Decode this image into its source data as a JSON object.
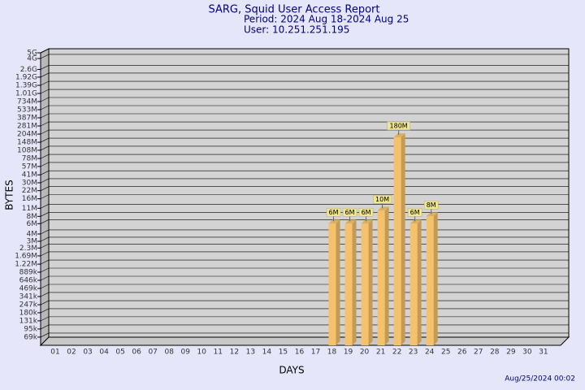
{
  "chart_data": {
    "type": "bar3d",
    "title": "SARG, Squid User Access Report",
    "subtitle": "Period: 2024 Aug 18-2024 Aug 25",
    "user": "User: 10.251.251.195",
    "xlabel": "DAYS",
    "ylabel": "BYTES",
    "timestamp": "Aug/25/2024 00:02",
    "categories": [
      "01",
      "02",
      "03",
      "04",
      "05",
      "06",
      "07",
      "08",
      "09",
      "10",
      "11",
      "12",
      "13",
      "14",
      "15",
      "16",
      "17",
      "18",
      "19",
      "20",
      "21",
      "22",
      "23",
      "24",
      "25",
      "26",
      "27",
      "28",
      "29",
      "30",
      "31"
    ],
    "values": [
      null,
      null,
      null,
      null,
      null,
      null,
      null,
      null,
      null,
      null,
      null,
      null,
      null,
      null,
      null,
      null,
      null,
      6000000,
      6000000,
      6000000,
      10000000,
      180000000,
      6000000,
      8000000,
      null,
      null,
      null,
      null,
      null,
      null,
      null
    ],
    "value_labels": [
      null,
      null,
      null,
      null,
      null,
      null,
      null,
      null,
      null,
      null,
      null,
      null,
      null,
      null,
      null,
      null,
      null,
      "6M",
      "6M",
      "6M",
      "10M",
      "180M",
      "6M",
      "8M",
      null,
      null,
      null,
      null,
      null,
      null,
      null
    ],
    "color": "#f5c26b",
    "log_scale": true,
    "grid": true,
    "ylim": [
      50000,
      5000000000
    ],
    "yticks": [
      {
        "value": 69000,
        "label": "69k"
      },
      {
        "value": 95000,
        "label": "95k"
      },
      {
        "value": 131000,
        "label": "131k"
      },
      {
        "value": 180000,
        "label": "180k"
      },
      {
        "value": 247000,
        "label": "247k"
      },
      {
        "value": 341000,
        "label": "341k"
      },
      {
        "value": 469000,
        "label": "469k"
      },
      {
        "value": 646000,
        "label": "646k"
      },
      {
        "value": 889000,
        "label": "889k"
      },
      {
        "value": 1220000,
        "label": "1.22M"
      },
      {
        "value": 1690000,
        "label": "1.69M"
      },
      {
        "value": 2300000,
        "label": "2.3M"
      },
      {
        "value": 3000000,
        "label": "3M"
      },
      {
        "value": 4000000,
        "label": "4M"
      },
      {
        "value": 6000000,
        "label": "6M"
      },
      {
        "value": 8000000,
        "label": "8M"
      },
      {
        "value": 11000000,
        "label": "11M"
      },
      {
        "value": 16000000,
        "label": "16M"
      },
      {
        "value": 22000000,
        "label": "22M"
      },
      {
        "value": 30000000,
        "label": "30M"
      },
      {
        "value": 41000000,
        "label": "41M"
      },
      {
        "value": 57000000,
        "label": "57M"
      },
      {
        "value": 78000000,
        "label": "78M"
      },
      {
        "value": 108000000,
        "label": "108M"
      },
      {
        "value": 148000000,
        "label": "148M"
      },
      {
        "value": 204000000,
        "label": "204M"
      },
      {
        "value": 281000000,
        "label": "281M"
      },
      {
        "value": 387000000,
        "label": "387M"
      },
      {
        "value": 533000000,
        "label": "533M"
      },
      {
        "value": 734000000,
        "label": "734M"
      },
      {
        "value": 1010000000,
        "label": "1.01G"
      },
      {
        "value": 1390000000,
        "label": "1.39G"
      },
      {
        "value": 1920000000,
        "label": "1.92G"
      },
      {
        "value": 2600000000,
        "label": "2.6G"
      },
      {
        "value": 4000000000,
        "label": "4G"
      },
      {
        "value": 5000000000,
        "label": "5G"
      }
    ]
  }
}
